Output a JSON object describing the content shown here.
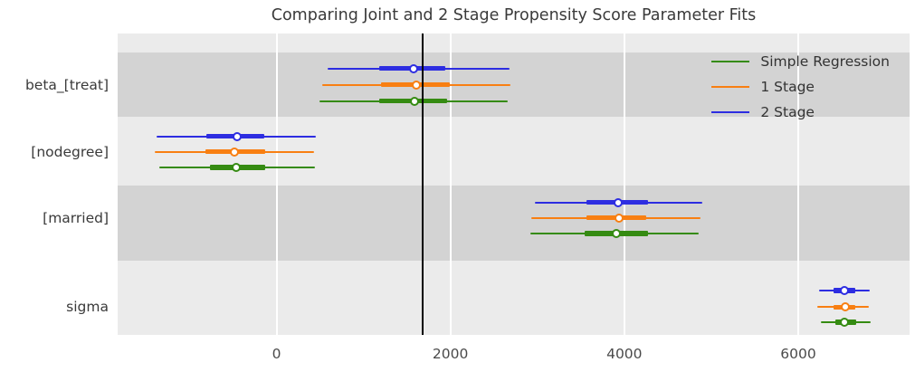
{
  "title": "Comparing Joint and 2 Stage Propensity Score Parameter Fits",
  "colors": {
    "simple_regression": "#358b12",
    "one_stage": "#f87f12",
    "two_stage": "#2d2de1",
    "reference_line": "#000000",
    "band_dark": "#d3d3d3",
    "band_light": "#ebebeb"
  },
  "legend": {
    "items": [
      {
        "label": "Simple Regression",
        "color": "#358b12"
      },
      {
        "label": "1 Stage",
        "color": "#f87f12"
      },
      {
        "label": "2 Stage",
        "color": "#2d2de1"
      }
    ],
    "position": "upper right"
  },
  "chart_data": {
    "type": "forest",
    "title": "Comparing Joint and 2 Stage Propensity Score Parameter Fits",
    "parameters": [
      "beta_[treat]",
      "[nodegree]",
      "[married]",
      "sigma"
    ],
    "x_ticks": [
      0,
      2000,
      4000,
      6000
    ],
    "xlim": [
      -1830,
      7280
    ],
    "reference_line_x": 1680,
    "grid": true,
    "marker_style": "white-filled circle with colored edge",
    "interval_style": "thin line = 94% HDI, thick line = 50% HDI",
    "series": [
      {
        "name": "2 Stage",
        "color": "#2d2de1",
        "estimates": [
          {
            "parameter": "beta_[treat]",
            "mean": 1580,
            "hdi_50": [
              1180,
              1945
            ],
            "hdi_94": [
              590,
              2685
            ]
          },
          {
            "parameter": "[nodegree]",
            "mean": -455,
            "hdi_50": [
              -805,
              -145
            ],
            "hdi_94": [
              -1380,
              455
            ]
          },
          {
            "parameter": "[married]",
            "mean": 3930,
            "hdi_50": [
              3565,
              4270
            ],
            "hdi_94": [
              2970,
              4895
            ]
          },
          {
            "parameter": "sigma",
            "mean": 6535,
            "hdi_50": [
              6410,
              6655
            ],
            "hdi_94": [
              6240,
              6820
            ]
          }
        ]
      },
      {
        "name": "1 Stage",
        "color": "#f87f12",
        "estimates": [
          {
            "parameter": "beta_[treat]",
            "mean": 1610,
            "hdi_50": [
              1200,
              1990
            ],
            "hdi_94": [
              525,
              2695
            ]
          },
          {
            "parameter": "[nodegree]",
            "mean": -485,
            "hdi_50": [
              -815,
              -135
            ],
            "hdi_94": [
              -1400,
              430
            ]
          },
          {
            "parameter": "[married]",
            "mean": 3935,
            "hdi_50": [
              3565,
              4255
            ],
            "hdi_94": [
              2925,
              4880
            ]
          },
          {
            "parameter": "sigma",
            "mean": 6540,
            "hdi_50": [
              6410,
              6660
            ],
            "hdi_94": [
              6220,
              6810
            ]
          }
        ]
      },
      {
        "name": "Simple Regression",
        "color": "#358b12",
        "estimates": [
          {
            "parameter": "beta_[treat]",
            "mean": 1585,
            "hdi_50": [
              1185,
              1960
            ],
            "hdi_94": [
              490,
              2660
            ]
          },
          {
            "parameter": "[nodegree]",
            "mean": -465,
            "hdi_50": [
              -770,
              -125
            ],
            "hdi_94": [
              -1350,
              440
            ]
          },
          {
            "parameter": "[married]",
            "mean": 3910,
            "hdi_50": [
              3545,
              4270
            ],
            "hdi_94": [
              2915,
              4860
            ]
          },
          {
            "parameter": "sigma",
            "mean": 6535,
            "hdi_50": [
              6425,
              6670
            ],
            "hdi_94": [
              6265,
              6835
            ]
          }
        ]
      }
    ]
  }
}
